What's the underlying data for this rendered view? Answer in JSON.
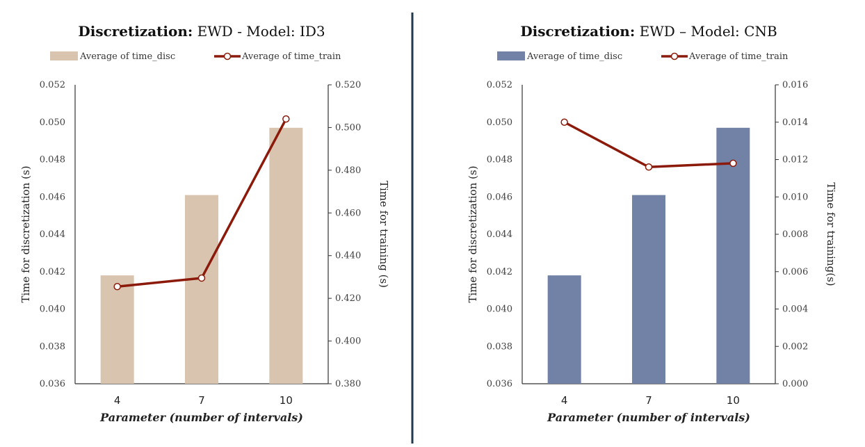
{
  "chart_data": [
    {
      "type": "bar",
      "title_bold": "Discretization:",
      "title_rest": " EWD - Model: ID3",
      "categories": [
        "4",
        "7",
        "10"
      ],
      "xlabel": "Parameter (number of intervals)",
      "ylabel": "Time for discretization (s)",
      "y2label": "Time for training (s)",
      "ylim": [
        0.036,
        0.052
      ],
      "yticks": [
        "0.036",
        "0.038",
        "0.040",
        "0.042",
        "0.044",
        "0.046",
        "0.048",
        "0.050",
        "0.052"
      ],
      "y2lim": [
        0.38,
        0.52
      ],
      "y2ticks": [
        "0.380",
        "0.400",
        "0.420",
        "0.440",
        "0.460",
        "0.480",
        "0.500",
        "0.520"
      ],
      "series": [
        {
          "name": "Average of time_disc",
          "kind": "bar",
          "axis": "left",
          "color": "#d9c4b0",
          "values": [
            0.0418,
            0.0461,
            0.0497
          ]
        },
        {
          "name": "Average of time_train",
          "kind": "line",
          "axis": "right",
          "color": "#8b1a0a",
          "values": [
            0.4255,
            0.4295,
            0.504
          ]
        }
      ]
    },
    {
      "type": "bar",
      "title_bold": "Discretization:",
      "title_rest": " EWD – Model: CNB",
      "categories": [
        "4",
        "7",
        "10"
      ],
      "xlabel": "Parameter (number of intervals)",
      "ylabel": "Time for discretization (s)",
      "y2label": "Time for training(s)",
      "ylim": [
        0.036,
        0.052
      ],
      "yticks": [
        "0.036",
        "0.038",
        "0.040",
        "0.042",
        "0.044",
        "0.046",
        "0.048",
        "0.050",
        "0.052"
      ],
      "y2lim": [
        0.0,
        0.016
      ],
      "y2ticks": [
        "0.000",
        "0.002",
        "0.004",
        "0.006",
        "0.008",
        "0.010",
        "0.012",
        "0.014",
        "0.016"
      ],
      "series": [
        {
          "name": "Average of time_disc",
          "kind": "bar",
          "axis": "left",
          "color": "#7282a6",
          "values": [
            0.0418,
            0.0461,
            0.0497
          ]
        },
        {
          "name": "Average of time_train",
          "kind": "line",
          "axis": "right",
          "color": "#8b1a0a",
          "values": [
            0.014,
            0.0116,
            0.0118
          ]
        }
      ]
    }
  ],
  "divider_color": "#1f3a4d"
}
